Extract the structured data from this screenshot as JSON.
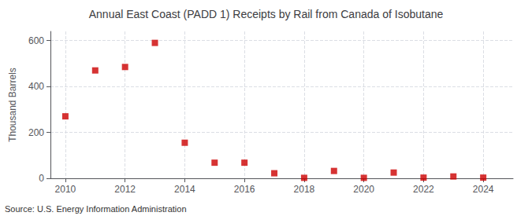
{
  "chart_data": {
    "type": "scatter",
    "title": "Annual East Coast (PADD 1) Receipts by Rail from Canada of Isobutane",
    "ylabel": "Thousand Barrels",
    "annotations": [
      "Source: U.S. Energy Information Administration"
    ],
    "x": [
      2010,
      2011,
      2012,
      2013,
      2014,
      2015,
      2016,
      2017,
      2018,
      2019,
      2020,
      2021,
      2022,
      2023,
      2024
    ],
    "values": [
      270,
      470,
      485,
      590,
      155,
      68,
      68,
      22,
      2,
      32,
      2,
      25,
      3,
      8,
      3
    ],
    "color": "#cc0000",
    "marker": "square",
    "xlim": [
      2009.5,
      2025.0
    ],
    "xticks": [
      2010,
      2012,
      2014,
      2016,
      2018,
      2020,
      2022,
      2024
    ],
    "ylim": [
      0,
      640
    ],
    "yticks": [
      0,
      200,
      400,
      600
    ],
    "grid": true
  }
}
